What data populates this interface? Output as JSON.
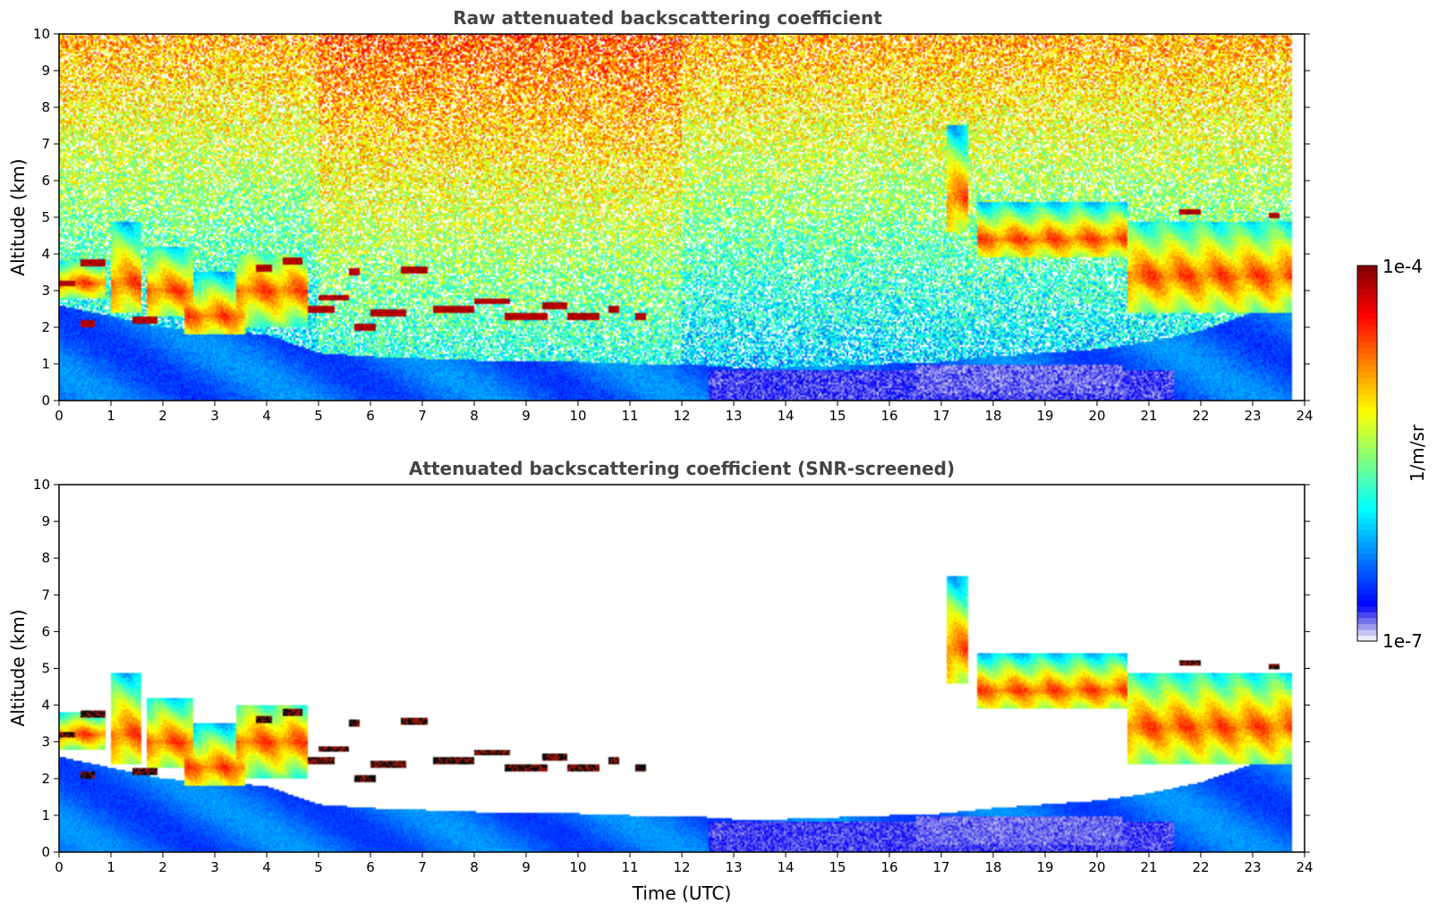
{
  "chart_data": [
    {
      "type": "heatmap",
      "title": "Raw attenuated backscattering coefficient",
      "xlabel": "",
      "ylabel": "Altitude (km)",
      "xlim": [
        0,
        24
      ],
      "ylim": [
        0,
        10
      ],
      "xticks": [
        0,
        1,
        2,
        3,
        4,
        5,
        6,
        7,
        8,
        9,
        10,
        11,
        12,
        13,
        14,
        15,
        16,
        17,
        18,
        19,
        20,
        21,
        22,
        23,
        24
      ],
      "yticks": [
        0,
        1,
        2,
        3,
        4,
        5,
        6,
        7,
        8,
        9,
        10
      ],
      "data_end_time": 23.75,
      "features": {
        "aerosol_layer_top_km": [
          [
            0,
            2.6
          ],
          [
            1,
            2.3
          ],
          [
            2,
            2.0
          ],
          [
            3,
            1.9
          ],
          [
            4,
            1.8
          ],
          [
            5,
            1.3
          ],
          [
            6,
            1.2
          ],
          [
            7,
            1.15
          ],
          [
            8,
            1.1
          ],
          [
            9,
            1.05
          ],
          [
            10,
            1.05
          ],
          [
            11,
            1.0
          ],
          [
            12,
            1.0
          ],
          [
            13,
            0.9
          ],
          [
            14,
            0.9
          ],
          [
            15,
            0.95
          ],
          [
            16,
            1.0
          ],
          [
            17,
            1.05
          ],
          [
            18,
            1.2
          ],
          [
            19,
            1.3
          ],
          [
            20,
            1.4
          ],
          [
            21,
            1.6
          ],
          [
            22,
            1.9
          ],
          [
            23,
            2.4
          ],
          [
            23.75,
            2.6
          ]
        ],
        "cloud_layers": [
          {
            "t0": 0.0,
            "t1": 0.9,
            "base": 2.8,
            "top": 3.8,
            "peak": 3.2
          },
          {
            "t0": 1.0,
            "t1": 1.6,
            "base": 2.4,
            "top": 4.9,
            "peak": 3.2
          },
          {
            "t0": 1.7,
            "t1": 2.6,
            "base": 2.3,
            "top": 4.2,
            "peak": 3.0
          },
          {
            "t0": 2.4,
            "t1": 3.6,
            "base": 1.8,
            "top": 3.5,
            "peak": 2.3
          },
          {
            "t0": 3.4,
            "t1": 4.8,
            "base": 2.0,
            "top": 4.0,
            "peak": 3.0
          },
          {
            "t0": 17.1,
            "t1": 17.5,
            "base": 4.6,
            "top": 7.5,
            "peak": 5.5
          },
          {
            "t0": 17.7,
            "t1": 20.6,
            "base": 3.9,
            "top": 5.4,
            "peak": 4.4
          },
          {
            "t0": 20.6,
            "t1": 23.75,
            "base": 2.4,
            "top": 4.9,
            "peak": 3.4
          }
        ],
        "thin_cloud_segments": [
          {
            "t0": 0.0,
            "t1": 0.3,
            "alt": 3.2
          },
          {
            "t0": 0.4,
            "t1": 0.9,
            "alt": 3.75
          },
          {
            "t0": 0.4,
            "t1": 0.7,
            "alt": 2.1
          },
          {
            "t0": 1.4,
            "t1": 1.9,
            "alt": 2.2
          },
          {
            "t0": 3.8,
            "t1": 4.1,
            "alt": 3.6
          },
          {
            "t0": 4.3,
            "t1": 4.7,
            "alt": 3.8
          },
          {
            "t0": 4.8,
            "t1": 5.3,
            "alt": 2.5
          },
          {
            "t0": 5.0,
            "t1": 5.6,
            "alt": 2.8
          },
          {
            "t0": 5.6,
            "t1": 5.8,
            "alt": 3.5
          },
          {
            "t0": 5.7,
            "t1": 6.1,
            "alt": 2.0
          },
          {
            "t0": 6.0,
            "t1": 6.7,
            "alt": 2.4
          },
          {
            "t0": 6.6,
            "t1": 7.1,
            "alt": 3.55
          },
          {
            "t0": 7.2,
            "t1": 8.0,
            "alt": 2.5
          },
          {
            "t0": 8.0,
            "t1": 8.7,
            "alt": 2.7
          },
          {
            "t0": 8.6,
            "t1": 9.4,
            "alt": 2.3
          },
          {
            "t0": 9.3,
            "t1": 9.8,
            "alt": 2.6
          },
          {
            "t0": 9.8,
            "t1": 10.4,
            "alt": 2.3
          },
          {
            "t0": 10.6,
            "t1": 10.8,
            "alt": 2.5
          },
          {
            "t0": 11.1,
            "t1": 11.3,
            "alt": 2.3
          },
          {
            "t0": 21.6,
            "t1": 22.0,
            "alt": 5.15
          },
          {
            "t0": 23.3,
            "t1": 23.5,
            "alt": 5.05
          }
        ]
      }
    },
    {
      "type": "heatmap",
      "title": "Attenuated backscattering coefficient (SNR-screened)",
      "xlabel": "Time (UTC)",
      "ylabel": "Altitude (km)",
      "xlim": [
        0,
        24
      ],
      "ylim": [
        0,
        10
      ],
      "xticks": [
        0,
        1,
        2,
        3,
        4,
        5,
        6,
        7,
        8,
        9,
        10,
        11,
        12,
        13,
        14,
        15,
        16,
        17,
        18,
        19,
        20,
        21,
        22,
        23,
        24
      ],
      "yticks": [
        0,
        1,
        2,
        3,
        4,
        5,
        6,
        7,
        8,
        9,
        10
      ],
      "data_end_time": 23.75
    }
  ],
  "colorbar": {
    "label": "1/m/sr",
    "max_label": "1e-4",
    "min_label": "1e-7",
    "colormap": "jet",
    "low_end_colors": [
      "#ecebfb",
      "#c4c2f5",
      "#9b98ee",
      "#7470ea",
      "#4a46ef",
      "#1e1bf5"
    ]
  }
}
